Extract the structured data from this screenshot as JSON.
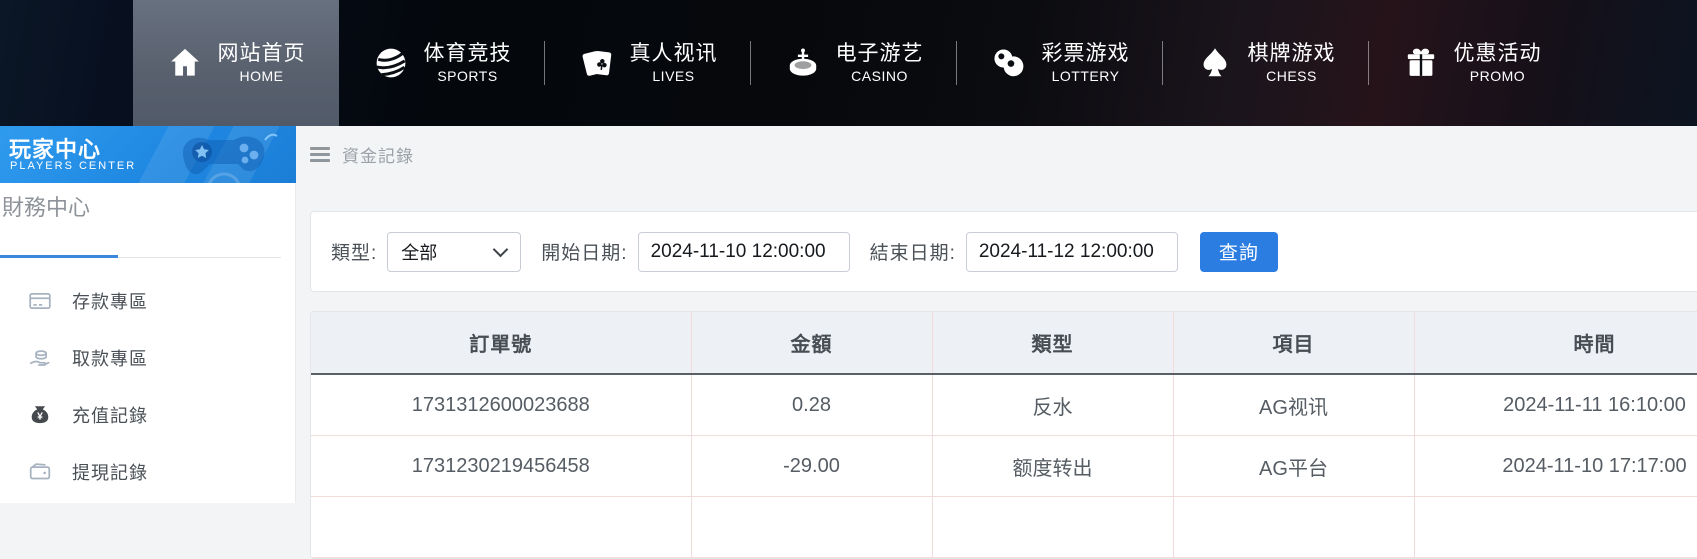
{
  "nav": {
    "items": [
      {
        "zh": "网站首页",
        "en": "HOME",
        "icon": "home",
        "active": true
      },
      {
        "zh": "体育竞技",
        "en": "SPORTS",
        "icon": "sports",
        "active": false
      },
      {
        "zh": "真人视讯",
        "en": "LIVES",
        "icon": "cards",
        "active": false
      },
      {
        "zh": "电子游艺",
        "en": "CASINO",
        "icon": "roulette",
        "active": false
      },
      {
        "zh": "彩票游戏",
        "en": "LOTTERY",
        "icon": "lottery",
        "active": false
      },
      {
        "zh": "棋牌游戏",
        "en": "CHESS",
        "icon": "spade",
        "active": false
      },
      {
        "zh": "优惠活动",
        "en": "PROMO",
        "icon": "gift",
        "active": false
      }
    ]
  },
  "sidebar": {
    "header": {
      "title": "玩家中心",
      "subtitle": "PLAYERS CENTER"
    },
    "section_title": "財務中心",
    "items": [
      {
        "icon": "deposit",
        "label": "存款專區"
      },
      {
        "icon": "withdraw",
        "label": "取款專區"
      },
      {
        "icon": "recharge",
        "label": "充值記錄"
      },
      {
        "icon": "withdrawal",
        "label": "提現記錄"
      }
    ]
  },
  "main": {
    "breadcrumb": "資金記錄",
    "filters": {
      "type_label": "類型:",
      "type_value": "全部",
      "start_label": "開始日期:",
      "start_value": "2024-11-10 12:00:00",
      "end_label": "結束日期:",
      "end_value": "2024-11-12 12:00:00",
      "search_label": "查詢"
    },
    "table": {
      "columns": [
        "訂單號",
        "金額",
        "類型",
        "項目",
        "時間"
      ],
      "rows": [
        [
          "1731312600023688",
          "0.28",
          "反水",
          "AG视讯",
          "2024-11-11 16:10:00"
        ],
        [
          "1731230219456458",
          "-29.00",
          "额度转出",
          "AG平台",
          "2024-11-10 17:17:00"
        ],
        [
          "",
          "",
          "",
          "",
          ""
        ]
      ]
    }
  },
  "colors": {
    "accent_blue": "#2b7de2",
    "sidebar_header_blue": "#1f88e2",
    "table_border_pink": "#f2dbdb",
    "nav_active_gray": "#59616f"
  }
}
